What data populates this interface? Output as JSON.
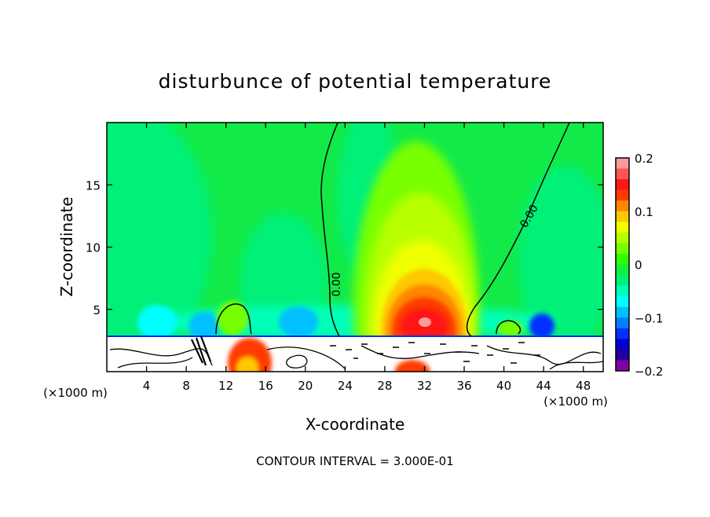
{
  "chart_data": {
    "type": "heatmap",
    "title": "disturbunce of potential temperature",
    "xlabel": "X-coordinate",
    "ylabel": "Z-coordinate",
    "x_unit": "(×1000 m)",
    "xlim": [
      0,
      50
    ],
    "ylim": [
      0,
      20
    ],
    "xticks": [
      4,
      8,
      12,
      16,
      20,
      24,
      28,
      32,
      36,
      40,
      44,
      48
    ],
    "yticks": [
      5,
      10,
      15
    ],
    "footer": "CONTOUR INTERVAL = 3.000E-01",
    "contour_labels": [
      {
        "text": "0.00",
        "x": 23.1,
        "z": 7.0
      },
      {
        "text": "0.00",
        "x": 42.5,
        "z": 12.5
      }
    ],
    "colorbar": {
      "range": [
        -0.2,
        0.2
      ],
      "ticks": [
        {
          "value": 0.2,
          "label": "0.2"
        },
        {
          "value": 0.1,
          "label": "0.1"
        },
        {
          "value": 0,
          "label": "0"
        },
        {
          "value": -0.1,
          "label": "−0.1"
        },
        {
          "value": -0.2,
          "label": "−0.2"
        }
      ],
      "colors": [
        "#ff9a9a",
        "#ff5555",
        "#ff1818",
        "#ff3a00",
        "#ff8800",
        "#ffc800",
        "#f0ff00",
        "#b8ff00",
        "#78ff00",
        "#30ff00",
        "#10f040",
        "#00f078",
        "#00ffb8",
        "#00ffff",
        "#00c0ff",
        "#0080ff",
        "#0030ff",
        "#0000d0",
        "#2000a0",
        "#8000a0"
      ]
    },
    "features": [
      {
        "name": "warm-plume",
        "x": 31.5,
        "z": 4.0,
        "peak": 0.2
      },
      {
        "name": "cool-spot",
        "x": 43.5,
        "z": 3.5,
        "peak": -0.12
      },
      {
        "name": "surface-layer",
        "z_top": 2.8
      }
    ]
  }
}
